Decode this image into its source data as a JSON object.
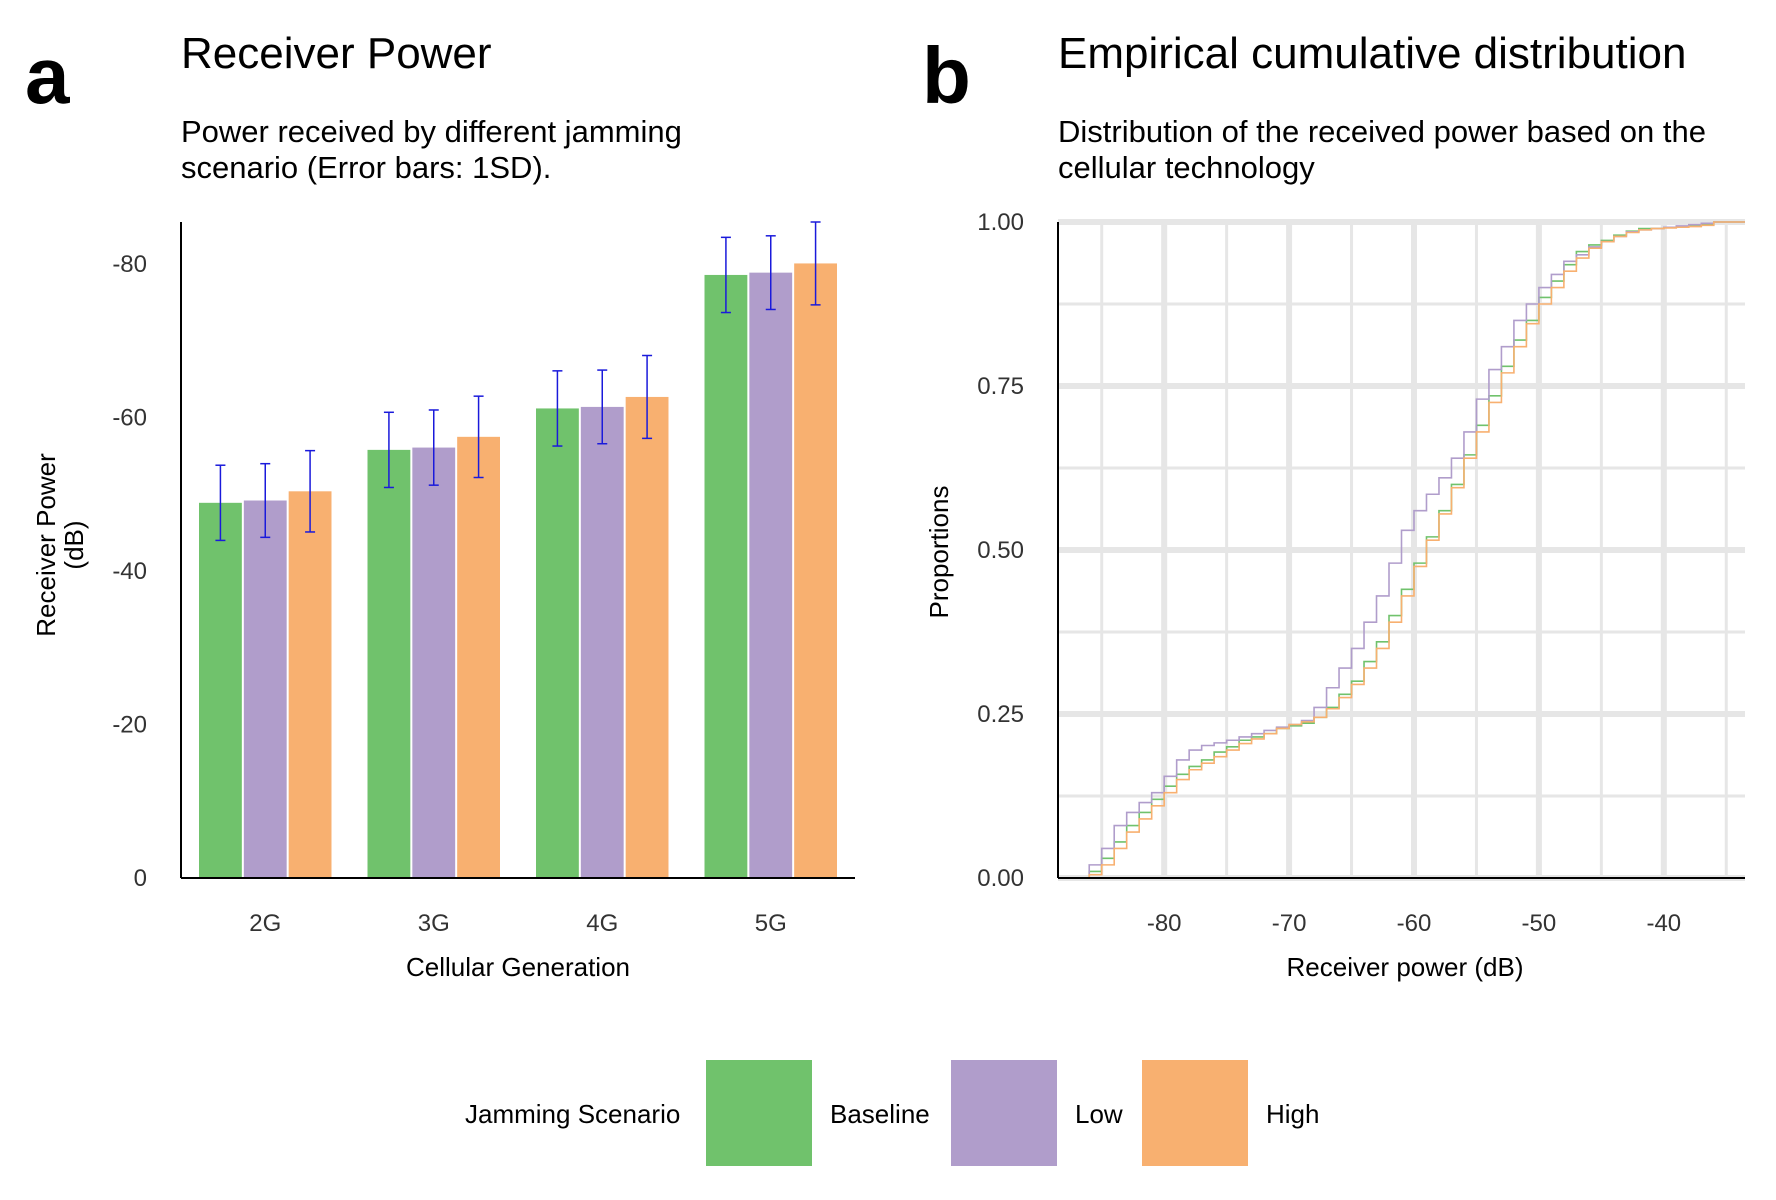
{
  "colors": {
    "Baseline": "#70c26c",
    "Low": "#b09dcb",
    "High": "#f8b070",
    "errorbar": "#1a1adb",
    "grid": "#e6e6e6"
  },
  "chart_data": [
    {
      "panel": "a",
      "type": "bar",
      "title": "Receiver Power",
      "subtitle_lines": [
        "Power received by different jamming",
        "scenario (Error bars: 1SD)."
      ],
      "xlabel": "Cellular Generation",
      "ylabel_lines": [
        "Receiver Power",
        "(dB)"
      ],
      "categories": [
        "2G",
        "3G",
        "4G",
        "5G"
      ],
      "ylim": [
        0,
        -85.5
      ],
      "yticks": [
        0,
        -20,
        -40,
        -60,
        -80
      ],
      "grid": false,
      "series": [
        {
          "name": "Baseline",
          "values": [
            -48.9,
            -55.8,
            -61.2,
            -78.6
          ],
          "sd": [
            4.9,
            4.9,
            4.9,
            4.9
          ]
        },
        {
          "name": "Low",
          "values": [
            -49.2,
            -56.1,
            -61.4,
            -78.9
          ],
          "sd": [
            4.8,
            4.9,
            4.8,
            4.8
          ]
        },
        {
          "name": "High",
          "values": [
            -50.4,
            -57.5,
            -62.7,
            -80.1
          ],
          "sd": [
            5.3,
            5.3,
            5.4,
            5.4
          ]
        }
      ]
    },
    {
      "panel": "b",
      "type": "line",
      "step": true,
      "title": "Empirical cumulative distribution",
      "subtitle_lines": [
        "Distribution of the received power based on the",
        "cellular technology"
      ],
      "xlabel": "Receiver power (dB)",
      "ylabel": "Proportions",
      "xlim": [
        -88.5,
        -33.5
      ],
      "ylim": [
        0,
        1
      ],
      "xticks": [
        -80,
        -70,
        -60,
        -50,
        -40
      ],
      "xtick_labels": [
        "-80",
        "-70",
        "-60",
        "-50",
        "-40"
      ],
      "yticks": [
        0,
        0.25,
        0.5,
        0.75,
        1
      ],
      "ytick_labels": [
        "0.00",
        "0.25",
        "0.50",
        "0.75",
        "1.00"
      ],
      "grid": true,
      "series": [
        {
          "name": "Baseline",
          "x": [
            -87,
            -86,
            -85,
            -84,
            -83,
            -82,
            -81,
            -80,
            -79,
            -78,
            -77,
            -76,
            -75,
            -74,
            -73,
            -72,
            -71,
            -70,
            -69,
            -68,
            -67,
            -66,
            -65,
            -64,
            -63,
            -62,
            -61,
            -60,
            -59,
            -58,
            -57,
            -56,
            -55,
            -54,
            -53,
            -52,
            -51,
            -50,
            -49,
            -48,
            -47,
            -46,
            -45,
            -44,
            -43,
            -42,
            -41,
            -40,
            -39,
            -38,
            -37,
            -36,
            -35,
            -34
          ],
          "y": [
            0,
            0.01,
            0.03,
            0.055,
            0.08,
            0.1,
            0.12,
            0.14,
            0.158,
            0.17,
            0.18,
            0.192,
            0.2,
            0.21,
            0.215,
            0.22,
            0.228,
            0.232,
            0.236,
            0.245,
            0.26,
            0.28,
            0.3,
            0.33,
            0.36,
            0.4,
            0.44,
            0.48,
            0.52,
            0.56,
            0.6,
            0.645,
            0.69,
            0.735,
            0.78,
            0.82,
            0.85,
            0.885,
            0.91,
            0.935,
            0.955,
            0.965,
            0.972,
            0.98,
            0.986,
            0.99,
            0.99,
            0.992,
            0.993,
            0.994,
            0.996,
            1,
            1,
            1
          ]
        },
        {
          "name": "Low",
          "x": [
            -87,
            -86,
            -85,
            -84,
            -83,
            -82,
            -81,
            -80,
            -79,
            -78,
            -77,
            -76,
            -75,
            -74,
            -73,
            -72,
            -71,
            -70,
            -69,
            -68,
            -67,
            -66,
            -65,
            -64,
            -63,
            -62,
            -61,
            -60,
            -59,
            -58,
            -57,
            -56,
            -55,
            -54,
            -53,
            -52,
            -51,
            -50,
            -49,
            -48,
            -47,
            -46,
            -45,
            -44,
            -43,
            -42,
            -41,
            -40,
            -39,
            -38,
            -37,
            -36,
            -35,
            -34
          ],
          "y": [
            0,
            0.02,
            0.045,
            0.08,
            0.1,
            0.115,
            0.13,
            0.155,
            0.18,
            0.195,
            0.202,
            0.206,
            0.21,
            0.215,
            0.22,
            0.225,
            0.23,
            0.234,
            0.24,
            0.26,
            0.29,
            0.32,
            0.35,
            0.39,
            0.43,
            0.48,
            0.53,
            0.56,
            0.585,
            0.61,
            0.64,
            0.68,
            0.73,
            0.775,
            0.81,
            0.85,
            0.875,
            0.9,
            0.92,
            0.94,
            0.95,
            0.962,
            0.97,
            0.978,
            0.985,
            0.988,
            0.99,
            0.992,
            0.994,
            0.996,
            0.998,
            1,
            1,
            1
          ]
        },
        {
          "name": "High",
          "x": [
            -87,
            -86,
            -85,
            -84,
            -83,
            -82,
            -81,
            -80,
            -79,
            -78,
            -77,
            -76,
            -75,
            -74,
            -73,
            -72,
            -71,
            -70,
            -69,
            -68,
            -67,
            -66,
            -65,
            -64,
            -63,
            -62,
            -61,
            -60,
            -59,
            -58,
            -57,
            -56,
            -55,
            -54,
            -53,
            -52,
            -51,
            -50,
            -49,
            -48,
            -47,
            -46,
            -45,
            -44,
            -43,
            -42,
            -41,
            -40,
            -39,
            -38,
            -37,
            -36,
            -35,
            -34
          ],
          "y": [
            0,
            0.005,
            0.02,
            0.045,
            0.07,
            0.09,
            0.11,
            0.13,
            0.15,
            0.165,
            0.175,
            0.185,
            0.195,
            0.205,
            0.212,
            0.22,
            0.228,
            0.234,
            0.238,
            0.245,
            0.258,
            0.275,
            0.295,
            0.32,
            0.35,
            0.39,
            0.43,
            0.475,
            0.515,
            0.555,
            0.595,
            0.64,
            0.68,
            0.725,
            0.77,
            0.81,
            0.845,
            0.875,
            0.9,
            0.925,
            0.945,
            0.96,
            0.97,
            0.978,
            0.984,
            0.988,
            0.99,
            0.991,
            0.992,
            0.993,
            0.995,
            1,
            1,
            1
          ]
        }
      ]
    }
  ],
  "legend": {
    "title": "Jamming Scenario",
    "position": "bottom",
    "entries": [
      "Baseline",
      "Low",
      "High"
    ]
  }
}
